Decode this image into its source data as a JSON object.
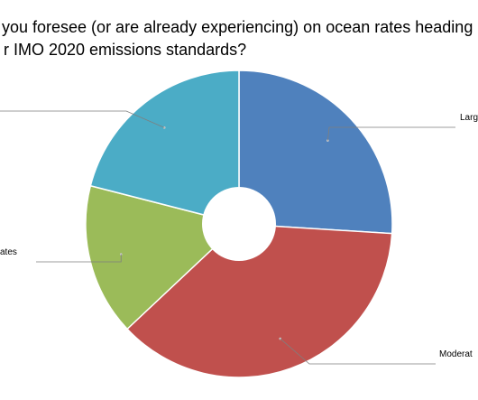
{
  "chart_data": {
    "type": "pie",
    "title_lines": [
      "you foresee (or are already experiencing) on ocean rates heading",
      "r IMO 2020 emissions standards?"
    ],
    "slices": [
      {
        "label": "Larg",
        "value": 26,
        "color": "#4f81bd"
      },
      {
        "label": "Moderat",
        "value": 37,
        "color": "#c0504d"
      },
      {
        "label": "ates",
        "value": 16,
        "color": "#9bbb59"
      },
      {
        "label": "",
        "value": 21,
        "color": "#4bacc6"
      }
    ]
  }
}
